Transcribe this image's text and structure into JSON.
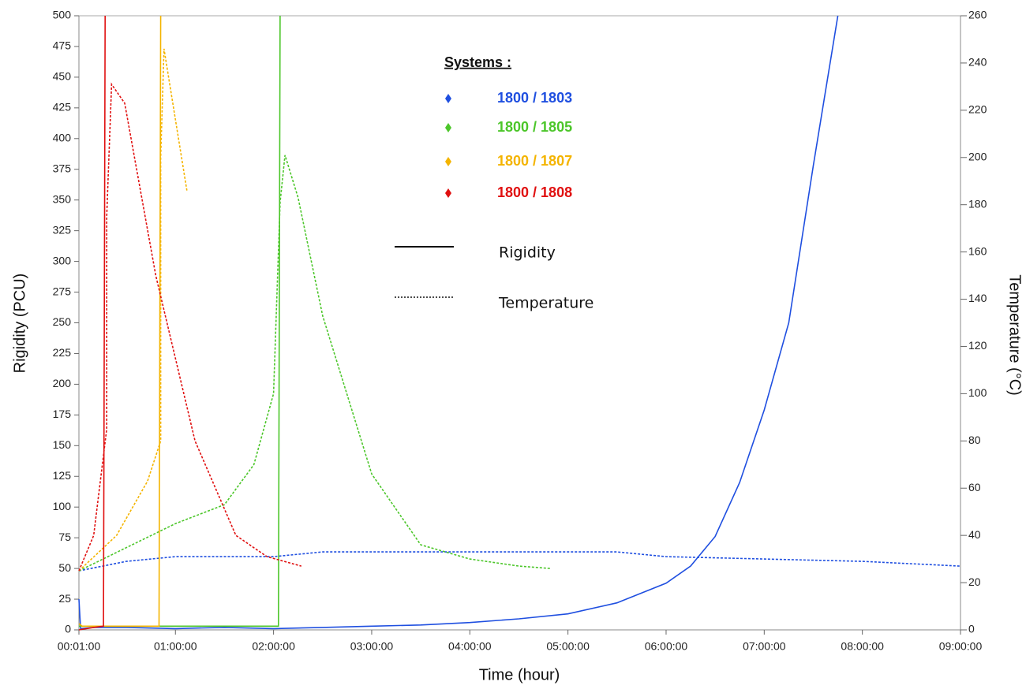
{
  "chart_data": {
    "type": "line",
    "xlabel": "Time (hour)",
    "ylabel": "Rigidity (PCU)",
    "y2label": "Temperature (°C)",
    "xlim": [
      1,
      540
    ],
    "xticks": [
      {
        "value": 1,
        "label": "00:01:00"
      },
      {
        "value": 60,
        "label": "01:00:00"
      },
      {
        "value": 120,
        "label": "02:00:00"
      },
      {
        "value": 180,
        "label": "03:00:00"
      },
      {
        "value": 240,
        "label": "04:00:00"
      },
      {
        "value": 300,
        "label": "05:00:00"
      },
      {
        "value": 360,
        "label": "06:00:00"
      },
      {
        "value": 420,
        "label": "07:00:00"
      },
      {
        "value": 480,
        "label": "08:00:00"
      },
      {
        "value": 540,
        "label": "09:00:00"
      }
    ],
    "ylim": [
      0,
      500
    ],
    "yticks": [
      0,
      25,
      50,
      75,
      100,
      125,
      150,
      175,
      200,
      225,
      250,
      275,
      300,
      325,
      350,
      375,
      400,
      425,
      450,
      475,
      500
    ],
    "y2lim": [
      0,
      260
    ],
    "y2ticks": [
      0,
      20,
      40,
      60,
      80,
      100,
      120,
      140,
      160,
      180,
      200,
      220,
      240,
      260
    ],
    "legend_title": "Systems :",
    "line_styles": [
      "Rigidity",
      "Temperature"
    ],
    "series": [
      {
        "name": "1800 / 1803",
        "color": "#1f4fe0",
        "rigidity": {
          "x": [
            1,
            2,
            10,
            30,
            60,
            90,
            120,
            150,
            180,
            210,
            240,
            270,
            300,
            330,
            360,
            375,
            390,
            405,
            420,
            435,
            450,
            465
          ],
          "values": [
            25,
            1,
            2,
            2,
            1,
            2,
            1,
            2,
            3,
            4,
            6,
            9,
            13,
            22,
            38,
            52,
            76,
            120,
            179,
            250,
            378,
            500
          ]
        },
        "temperature": {
          "x": [
            1,
            30,
            60,
            120,
            150,
            240,
            330,
            360,
            420,
            480,
            540
          ],
          "values": [
            25,
            29,
            31,
            31,
            33,
            33,
            33,
            31,
            30,
            29,
            27
          ]
        }
      },
      {
        "name": "1800 / 1805",
        "color": "#4cc62a",
        "rigidity": {
          "x": [
            1,
            60,
            123,
            124
          ],
          "values": [
            3,
            3,
            3,
            500
          ]
        },
        "temperature": {
          "x": [
            1,
            60,
            90,
            108,
            120,
            124,
            127,
            135,
            150,
            180,
            210,
            240,
            270,
            289
          ],
          "values": [
            25,
            45,
            53,
            70,
            100,
            181,
            201,
            183,
            133,
            66,
            36,
            30,
            27,
            26
          ]
        }
      },
      {
        "name": "1800 / 1807",
        "color": "#f4b400",
        "rigidity": {
          "x": [
            1,
            3,
            50,
            51
          ],
          "values": [
            5,
            3,
            3,
            500
          ]
        },
        "temperature": {
          "x": [
            1,
            24,
            43,
            51,
            51,
            53,
            60,
            67
          ],
          "values": [
            25,
            40,
            63,
            80,
            200,
            246,
            216,
            186
          ]
        }
      },
      {
        "name": "1800 / 1808",
        "color": "#e01010",
        "rigidity": {
          "x": [
            1,
            10,
            16,
            17
          ],
          "values": [
            0,
            2,
            3,
            500
          ]
        },
        "temperature": {
          "x": [
            1,
            10,
            18,
            18,
            21,
            29,
            48,
            72,
            97,
            116,
            137
          ],
          "values": [
            25,
            40,
            85,
            175,
            231,
            223,
            150,
            80,
            40,
            31,
            27
          ]
        }
      }
    ]
  }
}
